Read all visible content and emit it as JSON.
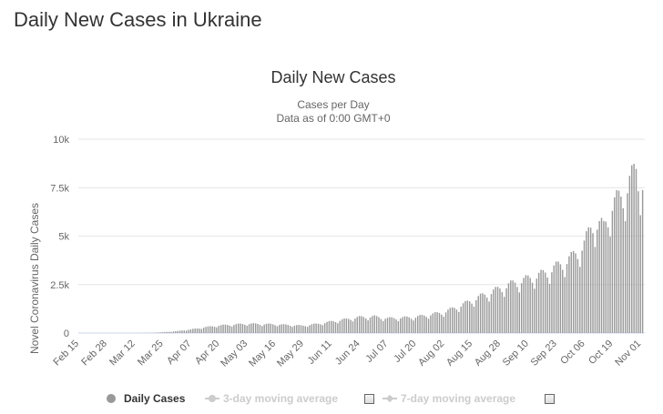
{
  "page": {
    "heading": "Daily New Cases in Ukraine"
  },
  "chart_data": {
    "type": "bar",
    "title": "Daily New Cases",
    "subtitle_lines": [
      "Cases per Day",
      "Data as of 0:00 GMT+0"
    ],
    "ylabel": "Novel Coronavirus Daily Cases",
    "ylim": [
      0,
      10000
    ],
    "y_ticks": [
      0,
      2500,
      5000,
      7500,
      10000
    ],
    "y_tick_labels": [
      "0",
      "2.5k",
      "5k",
      "7.5k",
      "10k"
    ],
    "x_tick_labels": [
      "Feb 15",
      "Feb 28",
      "Mar 12",
      "Mar 25",
      "Apr 07",
      "Apr 20",
      "May 03",
      "May 16",
      "May 29",
      "Jun 11",
      "Jun 24",
      "Jul 07",
      "Jul 20",
      "Aug 02",
      "Aug 15",
      "Aug 28",
      "Sep 10",
      "Sep 23",
      "Oct 06",
      "Oct 19",
      "Nov 01"
    ],
    "grid": true,
    "bar_color": "#999999",
    "series": [
      {
        "name": "Daily Cases",
        "anchors": [
          [
            "Feb 15",
            0
          ],
          [
            "Mar 12",
            0
          ],
          [
            "Mar 20",
            10
          ],
          [
            "Mar 25",
            40
          ],
          [
            "Apr 01",
            100
          ],
          [
            "Apr 07",
            180
          ],
          [
            "Apr 14",
            300
          ],
          [
            "Apr 20",
            380
          ],
          [
            "Apr 27",
            430
          ],
          [
            "May 03",
            470
          ],
          [
            "May 16",
            440
          ],
          [
            "May 29",
            370
          ],
          [
            "Jun 05",
            470
          ],
          [
            "Jun 11",
            580
          ],
          [
            "Jun 24",
            800
          ],
          [
            "Jul 01",
            830
          ],
          [
            "Jul 07",
            740
          ],
          [
            "Jul 20",
            810
          ],
          [
            "Aug 02",
            1050
          ],
          [
            "Aug 10",
            1400
          ],
          [
            "Aug 15",
            1650
          ],
          [
            "Aug 20",
            1900
          ],
          [
            "Aug 28",
            2250
          ],
          [
            "Sep 04",
            2550
          ],
          [
            "Sep 10",
            2750
          ],
          [
            "Sep 17",
            3000
          ],
          [
            "Sep 23",
            3350
          ],
          [
            "Sep 30",
            3800
          ],
          [
            "Oct 06",
            4500
          ],
          [
            "Oct 10",
            5600
          ],
          [
            "Oct 15",
            5350
          ],
          [
            "Oct 19",
            6500
          ],
          [
            "Oct 24",
            7000
          ],
          [
            "Oct 30",
            8300
          ],
          [
            "Nov 01",
            7600
          ]
        ]
      },
      {
        "name": "3-day moving average",
        "visible": false
      },
      {
        "name": "7-day moving average",
        "visible": false
      }
    ]
  },
  "legend": {
    "daily": "Daily Cases",
    "ma3": "3-day moving average",
    "ma7": "7-day moving average"
  },
  "colors": {
    "bars": "#999999",
    "grid": "#e6e6e6",
    "legend_inactive": "#cccccc"
  }
}
